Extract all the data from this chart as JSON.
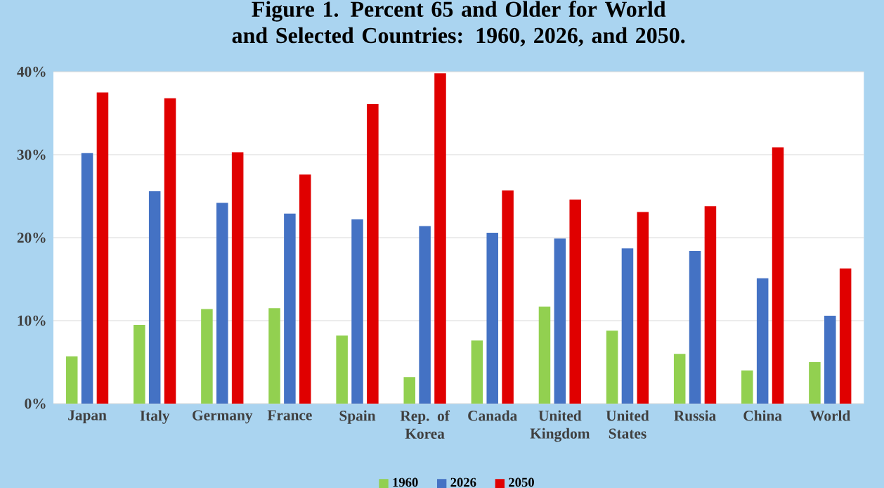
{
  "chart_data": {
    "type": "bar",
    "title": "Figure 1. Percent 65 and Older for World and Selected Countries: 1960, 2026, and 2050.",
    "categories": [
      "Japan",
      "Italy",
      "Germany",
      "France",
      "Spain",
      "Rep. of Korea",
      "Canada",
      "United Kingdom",
      "United States",
      "Russia",
      "China",
      "World"
    ],
    "series": [
      {
        "name": "1960",
        "color": "#92d050",
        "values": [
          5.7,
          9.5,
          11.4,
          11.5,
          8.2,
          3.2,
          7.6,
          11.7,
          8.8,
          6.0,
          4.0,
          5.0
        ]
      },
      {
        "name": "2026",
        "color": "#4472c4",
        "values": [
          30.2,
          25.6,
          24.2,
          22.9,
          22.2,
          21.4,
          20.6,
          19.9,
          18.7,
          18.4,
          15.1,
          10.6
        ]
      },
      {
        "name": "2050",
        "color": "#e00000",
        "values": [
          37.5,
          36.8,
          30.3,
          27.6,
          36.1,
          39.8,
          25.7,
          24.6,
          23.1,
          23.8,
          30.9,
          16.3
        ]
      }
    ],
    "ylim": [
      0,
      40
    ],
    "yticks": [
      {
        "value": 0,
        "label": "0%"
      },
      {
        "value": 10,
        "label": "10%"
      },
      {
        "value": 20,
        "label": "20%"
      },
      {
        "value": 30,
        "label": "30%"
      },
      {
        "value": 40,
        "label": "40%"
      }
    ],
    "grid": "y",
    "legend": "bottom"
  }
}
